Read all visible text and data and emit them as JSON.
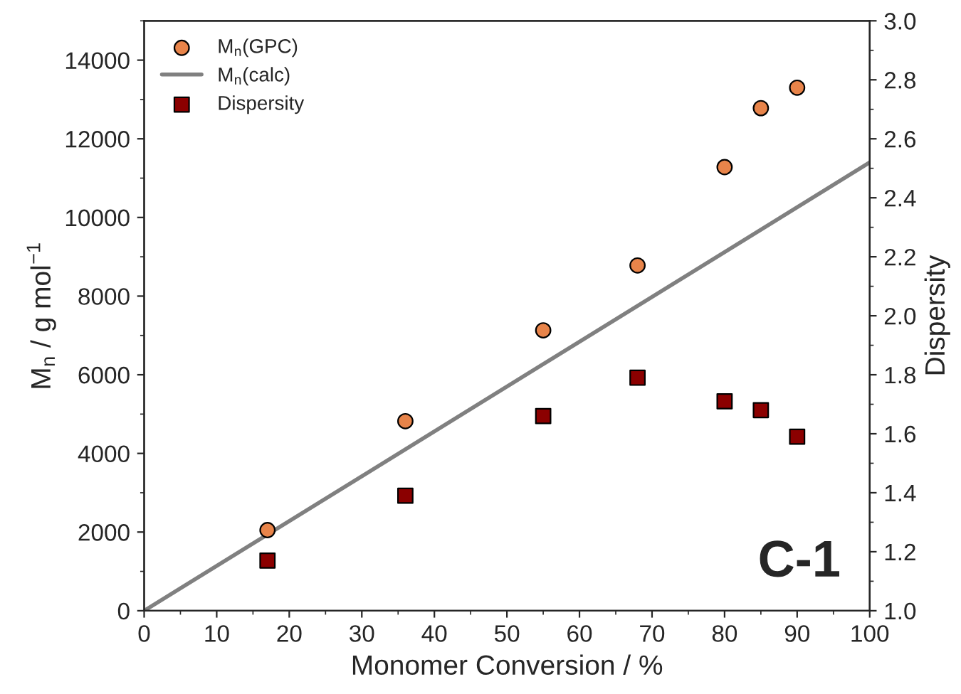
{
  "chart_data": {
    "type": "scatter",
    "xlabel": "Monomer Conversion / %",
    "ylabel": "M$_{n}$ / g mol$^{−1}$",
    "y2label": "Dispersity",
    "series": [
      {
        "name": "M$_{n}$(GPC)",
        "marker": "circle",
        "color": "#e8844a",
        "x": [
          17,
          36,
          55,
          68,
          80,
          85,
          90
        ],
        "values": [
          2050,
          4820,
          7130,
          8780,
          11280,
          12780,
          13300
        ]
      },
      {
        "name": "M$_{n}$(calc)",
        "type": "line",
        "marker": "none",
        "line_style": "solid",
        "color": "#808080",
        "x": [
          0,
          100
        ],
        "values": [
          0,
          11400
        ]
      },
      {
        "name": "Dispersity",
        "marker": "square",
        "color": "#8b0000",
        "axis": "y2",
        "x": [
          17,
          36,
          55,
          68,
          80,
          85,
          90
        ],
        "values": [
          1.17,
          1.39,
          1.66,
          1.79,
          1.71,
          1.68,
          1.59
        ]
      }
    ],
    "xlim": [
      0,
      100
    ],
    "xticks": [
      0,
      10,
      20,
      30,
      40,
      50,
      60,
      70,
      80,
      90,
      100
    ],
    "ylim": [
      0,
      15000
    ],
    "yticks": [
      0,
      2000,
      4000,
      6000,
      8000,
      10000,
      12000,
      14000
    ],
    "y2lim": [
      1.0,
      3.0
    ],
    "y2ticks": [
      {
        "value": 1.0,
        "label": "1.0"
      },
      {
        "value": 1.2,
        "label": "1.2"
      },
      {
        "value": 1.4,
        "label": "1.4"
      },
      {
        "value": 1.6,
        "label": "1.6"
      },
      {
        "value": 1.8,
        "label": "1.8"
      },
      {
        "value": 2.0,
        "label": "2.0"
      },
      {
        "value": 2.2,
        "label": "2.2"
      },
      {
        "value": 2.4,
        "label": "2.4"
      },
      {
        "value": 2.6,
        "label": "2.6"
      },
      {
        "value": 2.8,
        "label": "2.8"
      },
      {
        "value": 3.0,
        "label": "3.0"
      }
    ],
    "annotations": [
      "C-1"
    ],
    "legend": "top left",
    "grid": false
  }
}
